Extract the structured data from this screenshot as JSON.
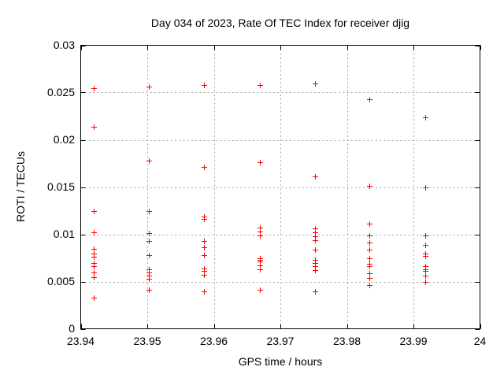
{
  "colors": {
    "background": "#ffffff",
    "frame": "#000000",
    "grid": "#a6a6a6",
    "text": "#000000",
    "marker": "#ff0000"
  },
  "chart_data": {
    "type": "scatter",
    "title": "Day 034 of 2023, Rate Of TEC Index for receiver djig",
    "xlabel": "GPS time / hours",
    "ylabel": "ROTI / TECUs",
    "xlim": [
      23.94,
      24
    ],
    "ylim": [
      0,
      0.03
    ],
    "grid": "dotted-major-both-axes",
    "legend": "none",
    "marker": {
      "symbol": "plus",
      "color": "#ff0000"
    },
    "x_ticks": [
      {
        "v": 23.94,
        "label": "23.94"
      },
      {
        "v": 23.95,
        "label": "23.95"
      },
      {
        "v": 23.96,
        "label": "23.96"
      },
      {
        "v": 23.97,
        "label": "23.97"
      },
      {
        "v": 23.98,
        "label": "23.98"
      },
      {
        "v": 23.99,
        "label": "23.99"
      },
      {
        "v": 24,
        "label": "24"
      }
    ],
    "y_ticks": [
      {
        "v": 0,
        "label": "0"
      },
      {
        "v": 0.005,
        "label": "0.005"
      },
      {
        "v": 0.01,
        "label": "0.01"
      },
      {
        "v": 0.015,
        "label": "0.015"
      },
      {
        "v": 0.02,
        "label": "0.02"
      },
      {
        "v": 0.025,
        "label": "0.025"
      },
      {
        "v": 0.03,
        "label": "0.03"
      }
    ],
    "series": [
      {
        "name": "ROTI",
        "clusters": [
          {
            "t": 23.9419,
            "values": [
              0.0255,
              0.0214,
              0.0125,
              0.0102,
              0.0085,
              0.008,
              0.0076,
              0.007,
              0.0066,
              0.006,
              0.0055,
              0.0033
            ]
          },
          {
            "t": 23.9502,
            "values": [
              0.0256,
              0.0178,
              0.0125,
              0.0101,
              0.0093,
              0.0078,
              0.0063,
              0.006,
              0.0056,
              0.0053,
              0.0041
            ]
          },
          {
            "t": 23.9585,
            "values": [
              0.0258,
              0.0171,
              0.0119,
              0.0116,
              0.0093,
              0.0086,
              0.0078,
              0.0064,
              0.0061,
              0.0057,
              0.004
            ]
          },
          {
            "t": 23.9669,
            "values": [
              0.0258,
              0.0176,
              0.0107,
              0.0103,
              0.0099,
              0.0075,
              0.0073,
              0.0071,
              0.0067,
              0.0063,
              0.0041
            ]
          },
          {
            "t": 23.9752,
            "values": [
              0.026,
              0.0161,
              0.0106,
              0.0102,
              0.0098,
              0.0094,
              0.0084,
              0.0073,
              0.007,
              0.0066,
              0.0062,
              0.004
            ]
          },
          {
            "t": 23.9834,
            "values": [
              0.0243,
              0.0151,
              0.0111,
              0.0099,
              0.0091,
              0.0084,
              0.0075,
              0.0069,
              0.0066,
              0.0059,
              0.0054,
              0.0046
            ]
          },
          {
            "t": 23.9918,
            "values": [
              0.0224,
              0.015,
              0.0099,
              0.0089,
              0.008,
              0.0077,
              0.0066,
              0.0063,
              0.0061,
              0.0056,
              0.005
            ]
          }
        ]
      }
    ]
  }
}
